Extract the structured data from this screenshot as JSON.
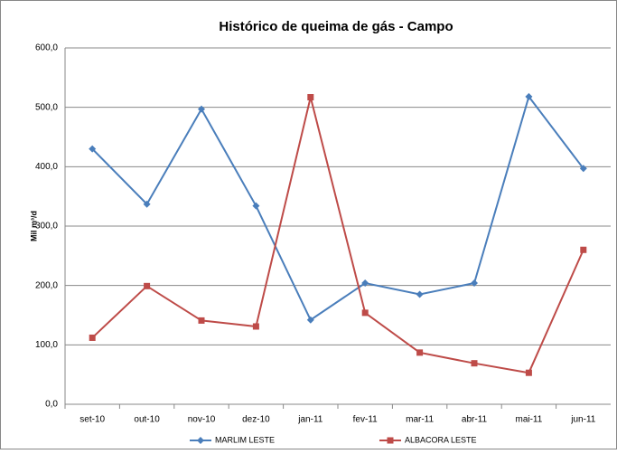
{
  "chart_data": {
    "type": "line",
    "title": "Histórico de queima de gás - Campo",
    "y_label": "Mil m³/d",
    "categories": [
      "set-10",
      "out-10",
      "nov-10",
      "dez-10",
      "jan-11",
      "fev-11",
      "mar-11",
      "abr-11",
      "mai-11",
      "jun-11"
    ],
    "series": [
      {
        "name": "MARLIM LESTE",
        "color": "#4a7ebb",
        "marker": "diamond",
        "values": [
          430,
          337,
          497,
          334,
          142,
          204,
          185,
          204,
          518,
          397
        ]
      },
      {
        "name": "ALBACORA LESTE",
        "color": "#be4b48",
        "marker": "square",
        "values": [
          112,
          199,
          141,
          131,
          517,
          154,
          87,
          69,
          53,
          260
        ]
      }
    ],
    "ylim": [
      0,
      600
    ],
    "yticks": [
      {
        "value": 0,
        "label": "0,0"
      },
      {
        "value": 100,
        "label": "100,0"
      },
      {
        "value": 200,
        "label": "200,0"
      },
      {
        "value": 300,
        "label": "300,0"
      },
      {
        "value": 400,
        "label": "400,0"
      },
      {
        "value": 500,
        "label": "500,0"
      },
      {
        "value": 600,
        "label": "600,0"
      }
    ],
    "grid": true,
    "legend": "bottom"
  }
}
